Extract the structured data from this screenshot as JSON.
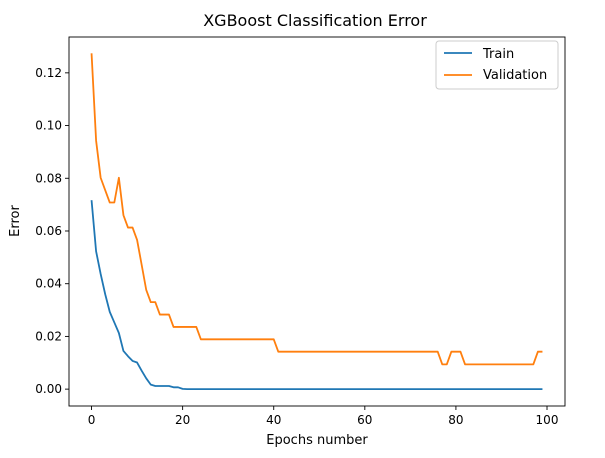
{
  "chart_data": {
    "type": "line",
    "title": "XGBoost Classification Error",
    "xlabel": "Epochs number",
    "ylabel": "Error",
    "xlim": [
      -4.95,
      103.95
    ],
    "ylim": [
      -0.0064,
      0.1336
    ],
    "xticks": [
      0,
      20,
      40,
      60,
      80,
      100
    ],
    "yticks": [
      0.0,
      0.02,
      0.04,
      0.06,
      0.08,
      0.1,
      0.12
    ],
    "xtick_labels": [
      "0",
      "20",
      "40",
      "60",
      "80",
      "100"
    ],
    "ytick_labels": [
      "0.00",
      "0.02",
      "0.04",
      "0.06",
      "0.08",
      "0.10",
      "0.12"
    ],
    "grid": false,
    "legend_position": "upper-right",
    "series": [
      {
        "name": "Train",
        "color": "#1f77b4",
        "x": [
          0,
          1,
          2,
          3,
          4,
          5,
          6,
          7,
          8,
          9,
          10,
          11,
          12,
          13,
          14,
          15,
          16,
          17,
          18,
          19,
          20,
          21,
          22,
          23,
          24,
          25,
          26,
          27,
          28,
          29,
          30,
          31,
          32,
          33,
          34,
          35,
          36,
          37,
          38,
          39,
          40,
          41,
          42,
          43,
          44,
          45,
          46,
          47,
          48,
          49,
          50,
          51,
          52,
          53,
          54,
          55,
          56,
          57,
          58,
          59,
          60,
          61,
          62,
          63,
          64,
          65,
          66,
          67,
          68,
          69,
          70,
          71,
          72,
          73,
          74,
          75,
          76,
          77,
          78,
          79,
          80,
          81,
          82,
          83,
          84,
          85,
          86,
          87,
          88,
          89,
          90,
          91,
          92,
          93,
          94,
          95,
          96,
          97,
          98,
          99
        ],
        "y": [
          0.0717,
          0.0523,
          0.0437,
          0.036,
          0.0293,
          0.0253,
          0.0213,
          0.0145,
          0.0125,
          0.0107,
          0.0101,
          0.007,
          0.0041,
          0.0017,
          0.0012,
          0.0012,
          0.0012,
          0.0012,
          0.0007,
          0.0007,
          0.0001,
          0,
          0,
          0,
          0,
          0,
          0,
          0,
          0,
          0,
          0,
          0,
          0,
          0,
          0,
          0,
          0,
          0,
          0,
          0,
          0,
          0,
          0,
          0,
          0,
          0,
          0,
          0,
          0,
          0,
          0,
          0,
          0,
          0,
          0,
          0,
          0,
          0,
          0,
          0,
          0,
          0,
          0,
          0,
          0,
          0,
          0,
          0,
          0,
          0,
          0,
          0,
          0,
          0,
          0,
          0,
          0,
          0,
          0,
          0,
          0,
          0,
          0,
          0,
          0,
          0,
          0,
          0,
          0,
          0,
          0,
          0,
          0,
          0,
          0,
          0,
          0,
          0,
          0,
          0
        ]
      },
      {
        "name": "Validation",
        "color": "#ff7f0e",
        "x": [
          0,
          1,
          2,
          3,
          4,
          5,
          6,
          7,
          8,
          9,
          10,
          11,
          12,
          13,
          14,
          15,
          16,
          17,
          18,
          19,
          20,
          21,
          22,
          23,
          24,
          25,
          26,
          27,
          28,
          29,
          30,
          31,
          32,
          33,
          34,
          35,
          36,
          37,
          38,
          39,
          40,
          41,
          42,
          43,
          44,
          45,
          46,
          47,
          48,
          49,
          50,
          51,
          52,
          53,
          54,
          55,
          56,
          57,
          58,
          59,
          60,
          61,
          62,
          63,
          64,
          65,
          66,
          67,
          68,
          69,
          70,
          71,
          72,
          73,
          74,
          75,
          76,
          77,
          78,
          79,
          80,
          81,
          82,
          83,
          84,
          85,
          86,
          87,
          88,
          89,
          90,
          91,
          92,
          93,
          94,
          95,
          96,
          97,
          98,
          99
        ],
        "y": [
          0.1274,
          0.0943,
          0.0802,
          0.0755,
          0.0708,
          0.0708,
          0.0802,
          0.066,
          0.0613,
          0.0613,
          0.0566,
          0.0472,
          0.0377,
          0.033,
          0.033,
          0.0283,
          0.0283,
          0.0283,
          0.0236,
          0.0236,
          0.0236,
          0.0236,
          0.0236,
          0.0236,
          0.0189,
          0.0189,
          0.0189,
          0.0189,
          0.0189,
          0.0189,
          0.0189,
          0.0189,
          0.0189,
          0.0189,
          0.0189,
          0.0189,
          0.0189,
          0.0189,
          0.0189,
          0.0189,
          0.0189,
          0.0142,
          0.0142,
          0.0142,
          0.0142,
          0.0142,
          0.0142,
          0.0142,
          0.0142,
          0.0142,
          0.0142,
          0.0142,
          0.0142,
          0.0142,
          0.0142,
          0.0142,
          0.0142,
          0.0142,
          0.0142,
          0.0142,
          0.0142,
          0.0142,
          0.0142,
          0.0142,
          0.0142,
          0.0142,
          0.0142,
          0.0142,
          0.0142,
          0.0142,
          0.0142,
          0.0142,
          0.0142,
          0.0142,
          0.0142,
          0.0142,
          0.0142,
          0.0094,
          0.0094,
          0.0142,
          0.0142,
          0.0142,
          0.0094,
          0.0094,
          0.0094,
          0.0094,
          0.0094,
          0.0094,
          0.0094,
          0.0094,
          0.0094,
          0.0094,
          0.0094,
          0.0094,
          0.0094,
          0.0094,
          0.0094,
          0.0094,
          0.0142,
          0.0142
        ]
      }
    ]
  }
}
